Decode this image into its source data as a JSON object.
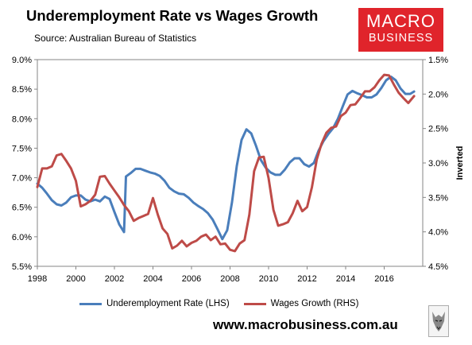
{
  "chart_data": {
    "type": "line",
    "title": "Underemployment Rate vs Wages Growth",
    "subtitle": "Source: Australian Bureau of Statistics",
    "y_left": {
      "min": 5.5,
      "max": 9.0,
      "ticks": [
        "5.5%",
        "6.0%",
        "6.5%",
        "7.0%",
        "7.5%",
        "8.0%",
        "8.5%",
        "9.0%"
      ]
    },
    "y_right": {
      "min": 1.5,
      "max": 4.5,
      "inverted": true,
      "label": "Inverted",
      "ticks": [
        "1.5%",
        "2.0%",
        "2.5%",
        "3.0%",
        "3.5%",
        "4.0%",
        "4.5%"
      ]
    },
    "x": {
      "min": 1998,
      "max": 2018,
      "ticks": [
        "1998",
        "2000",
        "2002",
        "2004",
        "2006",
        "2008",
        "2010",
        "2012",
        "2014",
        "2016"
      ]
    },
    "grid": false,
    "legend_position": "bottom",
    "series": [
      {
        "name": "Underemployment Rate (LHS)",
        "axis": "left",
        "color": "#4a7ebb",
        "points": [
          [
            1998.0,
            6.9
          ],
          [
            1998.25,
            6.83
          ],
          [
            1998.5,
            6.73
          ],
          [
            1998.75,
            6.62
          ],
          [
            1999.0,
            6.55
          ],
          [
            1999.25,
            6.53
          ],
          [
            1999.5,
            6.58
          ],
          [
            1999.75,
            6.67
          ],
          [
            2000.0,
            6.7
          ],
          [
            2000.25,
            6.7
          ],
          [
            2000.5,
            6.63
          ],
          [
            2000.75,
            6.6
          ],
          [
            2001.0,
            6.63
          ],
          [
            2001.25,
            6.6
          ],
          [
            2001.5,
            6.68
          ],
          [
            2001.75,
            6.64
          ],
          [
            2002.0,
            6.42
          ],
          [
            2002.25,
            6.21
          ],
          [
            2002.5,
            6.08
          ],
          [
            2002.6,
            7.02
          ],
          [
            2002.85,
            7.08
          ],
          [
            2003.1,
            7.15
          ],
          [
            2003.35,
            7.15
          ],
          [
            2003.6,
            7.12
          ],
          [
            2003.85,
            7.09
          ],
          [
            2004.1,
            7.07
          ],
          [
            2004.35,
            7.03
          ],
          [
            2004.6,
            6.95
          ],
          [
            2004.85,
            6.83
          ],
          [
            2005.1,
            6.77
          ],
          [
            2005.35,
            6.73
          ],
          [
            2005.6,
            6.72
          ],
          [
            2005.85,
            6.66
          ],
          [
            2006.1,
            6.58
          ],
          [
            2006.35,
            6.52
          ],
          [
            2006.6,
            6.47
          ],
          [
            2006.85,
            6.4
          ],
          [
            2007.1,
            6.29
          ],
          [
            2007.35,
            6.13
          ],
          [
            2007.6,
            5.96
          ],
          [
            2007.85,
            6.11
          ],
          [
            2008.1,
            6.58
          ],
          [
            2008.35,
            7.2
          ],
          [
            2008.6,
            7.64
          ],
          [
            2008.85,
            7.82
          ],
          [
            2009.1,
            7.75
          ],
          [
            2009.35,
            7.54
          ],
          [
            2009.6,
            7.3
          ],
          [
            2009.85,
            7.17
          ],
          [
            2010.1,
            7.09
          ],
          [
            2010.35,
            7.05
          ],
          [
            2010.6,
            7.05
          ],
          [
            2010.85,
            7.14
          ],
          [
            2011.1,
            7.26
          ],
          [
            2011.35,
            7.33
          ],
          [
            2011.6,
            7.33
          ],
          [
            2011.85,
            7.23
          ],
          [
            2012.1,
            7.19
          ],
          [
            2012.35,
            7.25
          ],
          [
            2012.6,
            7.46
          ],
          [
            2012.85,
            7.62
          ],
          [
            2013.1,
            7.74
          ],
          [
            2013.35,
            7.84
          ],
          [
            2013.6,
            8.0
          ],
          [
            2013.85,
            8.21
          ],
          [
            2014.1,
            8.41
          ],
          [
            2014.35,
            8.47
          ],
          [
            2014.6,
            8.43
          ],
          [
            2014.85,
            8.4
          ],
          [
            2015.1,
            8.36
          ],
          [
            2015.35,
            8.36
          ],
          [
            2015.6,
            8.41
          ],
          [
            2015.85,
            8.52
          ],
          [
            2016.1,
            8.65
          ],
          [
            2016.35,
            8.71
          ],
          [
            2016.6,
            8.65
          ],
          [
            2016.85,
            8.51
          ],
          [
            2017.1,
            8.42
          ],
          [
            2017.35,
            8.42
          ],
          [
            2017.55,
            8.46
          ]
        ]
      },
      {
        "name": "Wages Growth (RHS)",
        "axis": "right",
        "color": "#be4b48",
        "points": [
          [
            1998.0,
            3.35
          ],
          [
            1998.25,
            3.08
          ],
          [
            1998.5,
            3.08
          ],
          [
            1998.75,
            3.05
          ],
          [
            1999.0,
            2.89
          ],
          [
            1999.25,
            2.87
          ],
          [
            1999.5,
            2.97
          ],
          [
            1999.75,
            3.08
          ],
          [
            2000.0,
            3.26
          ],
          [
            2000.25,
            3.63
          ],
          [
            2000.5,
            3.6
          ],
          [
            2000.75,
            3.55
          ],
          [
            2001.0,
            3.46
          ],
          [
            2001.25,
            3.2
          ],
          [
            2001.5,
            3.19
          ],
          [
            2001.75,
            3.3
          ],
          [
            2002.0,
            3.4
          ],
          [
            2002.25,
            3.5
          ],
          [
            2002.5,
            3.61
          ],
          [
            2002.75,
            3.7
          ],
          [
            2003.0,
            3.84
          ],
          [
            2003.25,
            3.8
          ],
          [
            2003.5,
            3.77
          ],
          [
            2003.75,
            3.74
          ],
          [
            2004.0,
            3.51
          ],
          [
            2004.25,
            3.75
          ],
          [
            2004.5,
            3.95
          ],
          [
            2004.75,
            4.03
          ],
          [
            2005.0,
            4.24
          ],
          [
            2005.25,
            4.2
          ],
          [
            2005.5,
            4.13
          ],
          [
            2005.75,
            4.21
          ],
          [
            2006.0,
            4.16
          ],
          [
            2006.25,
            4.13
          ],
          [
            2006.5,
            4.07
          ],
          [
            2006.75,
            4.04
          ],
          [
            2007.0,
            4.12
          ],
          [
            2007.25,
            4.07
          ],
          [
            2007.5,
            4.18
          ],
          [
            2007.75,
            4.17
          ],
          [
            2008.0,
            4.26
          ],
          [
            2008.25,
            4.28
          ],
          [
            2008.5,
            4.17
          ],
          [
            2008.75,
            4.12
          ],
          [
            2009.0,
            3.75
          ],
          [
            2009.25,
            3.12
          ],
          [
            2009.5,
            2.92
          ],
          [
            2009.75,
            2.91
          ],
          [
            2010.0,
            3.22
          ],
          [
            2010.25,
            3.68
          ],
          [
            2010.5,
            3.91
          ],
          [
            2010.75,
            3.89
          ],
          [
            2011.0,
            3.86
          ],
          [
            2011.25,
            3.73
          ],
          [
            2011.5,
            3.55
          ],
          [
            2011.75,
            3.7
          ],
          [
            2012.0,
            3.64
          ],
          [
            2012.25,
            3.35
          ],
          [
            2012.5,
            2.95
          ],
          [
            2012.75,
            2.72
          ],
          [
            2013.0,
            2.56
          ],
          [
            2013.25,
            2.49
          ],
          [
            2013.5,
            2.47
          ],
          [
            2013.75,
            2.32
          ],
          [
            2014.0,
            2.27
          ],
          [
            2014.25,
            2.16
          ],
          [
            2014.5,
            2.15
          ],
          [
            2014.75,
            2.06
          ],
          [
            2015.0,
            1.96
          ],
          [
            2015.25,
            1.96
          ],
          [
            2015.5,
            1.9
          ],
          [
            2015.75,
            1.8
          ],
          [
            2016.0,
            1.72
          ],
          [
            2016.25,
            1.73
          ],
          [
            2016.5,
            1.86
          ],
          [
            2016.75,
            1.98
          ],
          [
            2017.0,
            2.06
          ],
          [
            2017.25,
            2.13
          ],
          [
            2017.55,
            2.03
          ]
        ]
      }
    ]
  },
  "logo": {
    "line1": "MACRO",
    "line2": "BUSINESS"
  },
  "footer_url": "www.macrobusiness.com.au"
}
